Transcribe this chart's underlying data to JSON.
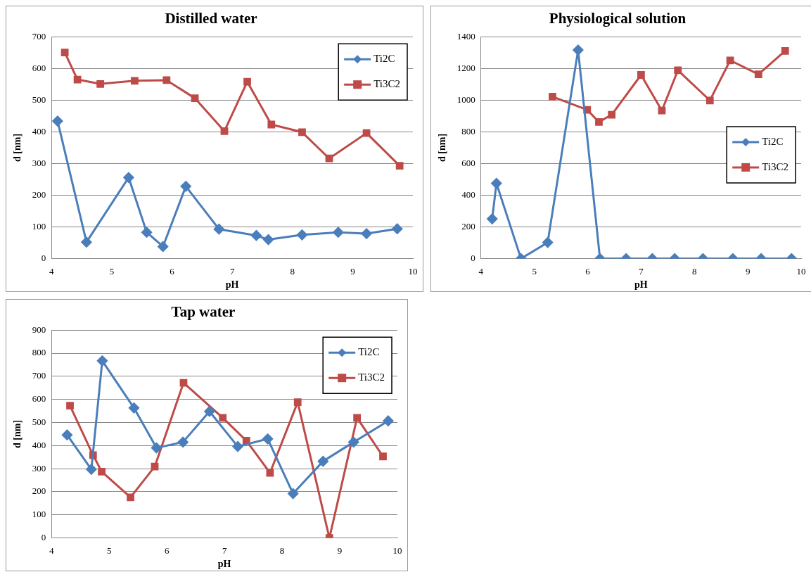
{
  "chart_data": [
    {
      "type": "line",
      "title": "Distilled water",
      "xlabel": "pH",
      "ylabel": "d [nm]",
      "xlim": [
        4,
        10
      ],
      "xticks": [
        4,
        5,
        6,
        7,
        8,
        9,
        10
      ],
      "ylim": [
        0,
        700
      ],
      "yticks": [
        0,
        100,
        200,
        300,
        400,
        500,
        600,
        700
      ],
      "grid": "y",
      "legend": "top right",
      "series": [
        {
          "name": "Ti2C",
          "color": "#4a7ebb",
          "marker": "diamond",
          "x": [
            4.1,
            4.58,
            5.28,
            5.58,
            5.85,
            6.23,
            6.78,
            7.4,
            7.6,
            8.16,
            8.76,
            9.23,
            9.74
          ],
          "values": [
            434,
            52,
            256,
            83,
            38,
            228,
            93,
            73,
            60,
            75,
            83,
            79,
            94
          ]
        },
        {
          "name": "Ti3C2",
          "color": "#be4b48",
          "marker": "square",
          "x": [
            4.22,
            4.43,
            4.81,
            5.38,
            5.91,
            6.38,
            6.87,
            7.25,
            7.65,
            8.16,
            8.61,
            9.23,
            9.78
          ],
          "values": [
            650,
            565,
            551,
            561,
            563,
            506,
            402,
            558,
            423,
            399,
            316,
            396,
            293
          ]
        }
      ]
    },
    {
      "type": "line",
      "title": "Physiological solution",
      "xlabel": "pH",
      "ylabel": "d [nm]",
      "xlim": [
        4,
        10
      ],
      "xticks": [
        4,
        5,
        6,
        7,
        8,
        9,
        10
      ],
      "ylim": [
        0,
        1400
      ],
      "yticks": [
        0,
        200,
        400,
        600,
        800,
        1000,
        1200,
        1400
      ],
      "grid": "y",
      "legend": "right",
      "series": [
        {
          "name": "Ti2C",
          "color": "#4a7ebb",
          "marker": "diamond",
          "x": [
            4.21,
            4.29,
            4.75,
            5.25,
            5.82,
            6.23,
            6.72,
            7.21,
            7.63,
            8.16,
            8.72,
            9.25,
            9.82
          ],
          "values": [
            251,
            475,
            0,
            102,
            1316,
            0,
            0,
            0,
            0,
            0,
            0,
            0,
            0
          ]
        },
        {
          "name": "Ti3C2",
          "color": "#be4b48",
          "marker": "square",
          "x": [
            5.34,
            5.99,
            6.21,
            6.45,
            7.0,
            7.39,
            7.69,
            8.29,
            8.67,
            9.2,
            9.7
          ],
          "values": [
            1022,
            939,
            862,
            908,
            1159,
            934,
            1188,
            998,
            1251,
            1163,
            1310
          ]
        }
      ]
    },
    {
      "type": "line",
      "title": "Tap water",
      "xlabel": "pH",
      "ylabel": "d [nm]",
      "xlim": [
        4,
        10
      ],
      "xticks": [
        4,
        5,
        6,
        7,
        8,
        9,
        10
      ],
      "ylim": [
        0,
        900
      ],
      "yticks": [
        0,
        100,
        200,
        300,
        400,
        500,
        600,
        700,
        800,
        900
      ],
      "grid": "y",
      "legend": "top right",
      "series": [
        {
          "name": "Ti2C",
          "color": "#4a7ebb",
          "marker": "diamond",
          "x": [
            4.27,
            4.69,
            4.88,
            5.43,
            5.82,
            6.28,
            6.74,
            7.23,
            7.75,
            8.19,
            8.71,
            9.24,
            9.84
          ],
          "values": [
            446,
            297,
            767,
            563,
            390,
            415,
            548,
            396,
            429,
            192,
            332,
            415,
            507
          ]
        },
        {
          "name": "Ti3C2",
          "color": "#be4b48",
          "marker": "square",
          "x": [
            4.32,
            4.72,
            4.87,
            5.37,
            5.79,
            6.29,
            6.97,
            7.38,
            7.79,
            8.27,
            8.82,
            9.3,
            9.75
          ],
          "values": [
            573,
            359,
            287,
            176,
            309,
            672,
            520,
            421,
            282,
            588,
            0,
            520,
            353
          ]
        }
      ]
    }
  ]
}
